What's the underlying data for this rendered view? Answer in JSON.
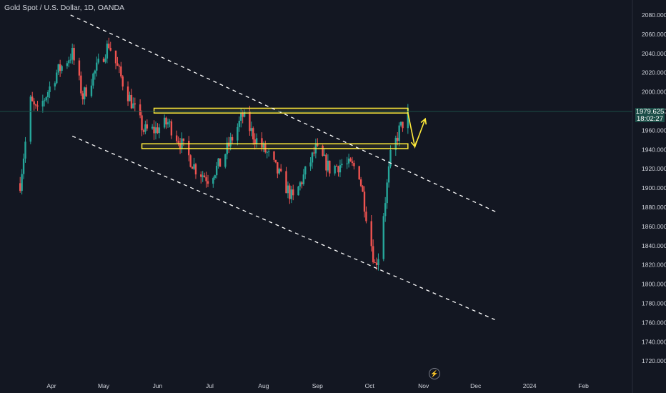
{
  "header": {
    "symbol_title": "Gold Spot / U.S. Dollar, 1D, OANDA"
  },
  "price_tag": {
    "price": "1979.625",
    "countdown": "18:02:27"
  },
  "colors": {
    "background": "#131722",
    "up": "#26a69a",
    "down": "#ef5350",
    "annotation": "#ffeb3b",
    "trendline": "#ffffff",
    "axis_text": "#d1d4dc"
  },
  "icons": {
    "replay": "lightning-bolt-icon"
  },
  "chart_data": {
    "type": "candlestick",
    "title": "Gold Spot / U.S. Dollar, 1D, OANDA",
    "xlabel": "",
    "ylabel": "",
    "x_ticks": [
      "Apr",
      "May",
      "Jun",
      "Jul",
      "Aug",
      "Sep",
      "Oct",
      "Nov",
      "Dec",
      "2024",
      "Feb"
    ],
    "y_ticks": [
      2080,
      2060,
      2040,
      2020,
      2000,
      1980,
      1960,
      1940,
      1920,
      1900,
      1880,
      1860,
      1840,
      1820,
      1800,
      1780,
      1760,
      1740,
      1720
    ],
    "ylim": [
      1714,
      2090
    ],
    "grid": false,
    "last_price": 1979.625,
    "waypoints": [
      {
        "date": "2023-03-14",
        "price": 1905
      },
      {
        "date": "2023-03-20",
        "price": 1990
      },
      {
        "date": "2023-03-24",
        "price": 1978
      },
      {
        "date": "2023-04-04",
        "price": 2020
      },
      {
        "date": "2023-04-13",
        "price": 2040
      },
      {
        "date": "2023-04-19",
        "price": 1995
      },
      {
        "date": "2023-05-04",
        "price": 2050
      },
      {
        "date": "2023-05-12",
        "price": 2010
      },
      {
        "date": "2023-05-24",
        "price": 1960
      },
      {
        "date": "2023-05-30",
        "price": 1960
      },
      {
        "date": "2023-06-07",
        "price": 1968
      },
      {
        "date": "2023-06-14",
        "price": 1948
      },
      {
        "date": "2023-06-23",
        "price": 1920
      },
      {
        "date": "2023-06-30",
        "price": 1910
      },
      {
        "date": "2023-07-07",
        "price": 1925
      },
      {
        "date": "2023-07-20",
        "price": 1975
      },
      {
        "date": "2023-07-27",
        "price": 1952
      },
      {
        "date": "2023-08-03",
        "price": 1936
      },
      {
        "date": "2023-08-18",
        "price": 1888
      },
      {
        "date": "2023-08-31",
        "price": 1940
      },
      {
        "date": "2023-09-08",
        "price": 1920
      },
      {
        "date": "2023-09-15",
        "price": 1925
      },
      {
        "date": "2023-09-22",
        "price": 1922
      },
      {
        "date": "2023-09-25",
        "price": 1915
      },
      {
        "date": "2023-10-04",
        "price": 1820
      },
      {
        "date": "2023-10-06",
        "price": 1830
      },
      {
        "date": "2023-10-13",
        "price": 1932
      },
      {
        "date": "2023-10-18",
        "price": 1960
      },
      {
        "date": "2023-10-23",
        "price": 1978
      }
    ],
    "trend_lines": [
      {
        "from": {
          "date": "2023-04-12",
          "price": 2080
        },
        "to": {
          "date": "2023-12-14",
          "price": 1874
        }
      },
      {
        "from": {
          "date": "2023-04-13",
          "price": 1954
        },
        "to": {
          "date": "2023-12-12",
          "price": 1763
        }
      }
    ],
    "zones": [
      {
        "from": "2023-05-30",
        "to": "2023-10-23",
        "low": 1978,
        "high": 1983
      },
      {
        "from": "2023-05-23",
        "to": "2023-10-23",
        "low": 1941,
        "high": 1946
      }
    ],
    "projection": [
      {
        "date": "2023-10-23",
        "price": 1978
      },
      {
        "date": "2023-10-27",
        "price": 1943
      },
      {
        "date": "2023-11-02",
        "price": 1972
      }
    ]
  }
}
